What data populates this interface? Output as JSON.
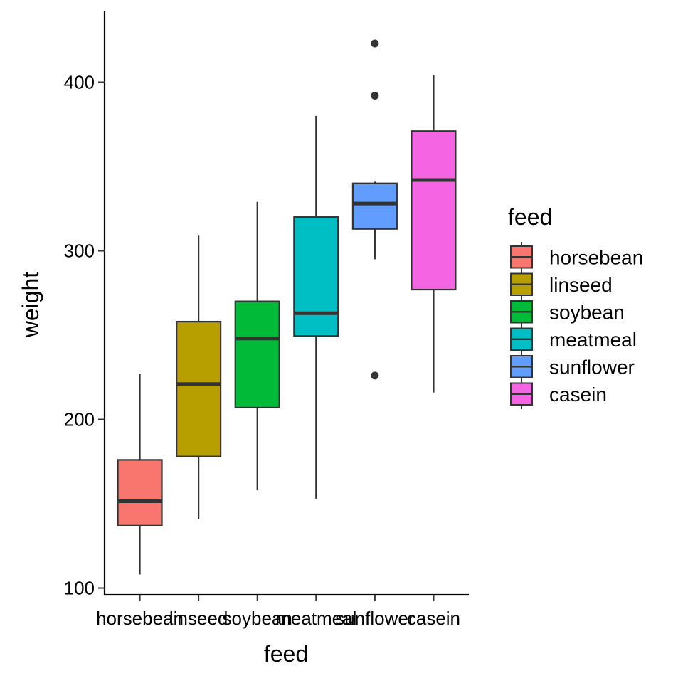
{
  "chart_data": {
    "type": "boxplot",
    "title": "",
    "xlabel": "feed",
    "ylabel": "weight",
    "ylim": [
      96,
      442
    ],
    "yticks": [
      100,
      200,
      300,
      400
    ],
    "grid": false,
    "legend_title": "feed",
    "legend_position": "right",
    "categories": [
      "horsebean",
      "linseed",
      "soybean",
      "meatmeal",
      "sunflower",
      "casein"
    ],
    "series": [
      {
        "name": "horsebean",
        "color": "#F8766D",
        "whisker_low": 108,
        "q1": 137,
        "median": 151.5,
        "q3": 176,
        "whisker_high": 227,
        "outliers": []
      },
      {
        "name": "linseed",
        "color": "#B79F00",
        "whisker_low": 141,
        "q1": 178,
        "median": 221,
        "q3": 258,
        "whisker_high": 309,
        "outliers": []
      },
      {
        "name": "soybean",
        "color": "#00BA38",
        "whisker_low": 158,
        "q1": 207,
        "median": 248,
        "q3": 270,
        "whisker_high": 329,
        "outliers": []
      },
      {
        "name": "meatmeal",
        "color": "#00BFC4",
        "whisker_low": 153,
        "q1": 249.5,
        "median": 263,
        "q3": 320,
        "whisker_high": 380,
        "outliers": []
      },
      {
        "name": "sunflower",
        "color": "#619CFF",
        "whisker_low": 295,
        "q1": 313,
        "median": 328,
        "q3": 340,
        "whisker_high": 341,
        "outliers": [
          226,
          392,
          423
        ]
      },
      {
        "name": "casein",
        "color": "#F564E3",
        "whisker_low": 216,
        "q1": 277,
        "median": 342,
        "q3": 371,
        "whisker_high": 404,
        "outliers": []
      }
    ]
  }
}
